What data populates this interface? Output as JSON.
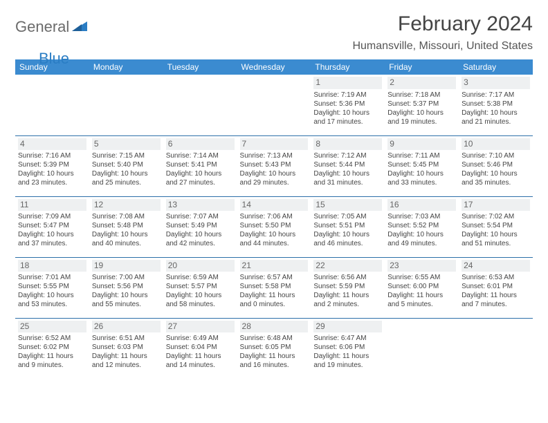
{
  "logo": {
    "text_general": "General",
    "text_blue": "Blue"
  },
  "title": "February 2024",
  "location": "Humansville, Missouri, United States",
  "colors": {
    "header_bg": "#3b8bd0",
    "header_text": "#ffffff",
    "row_divider": "#2a6ea8",
    "daynum_bg": "#eef0f1",
    "logo_gray": "#6b6b6b",
    "logo_blue": "#2a7dc4",
    "page_bg": "#ffffff"
  },
  "weekdays": [
    "Sunday",
    "Monday",
    "Tuesday",
    "Wednesday",
    "Thursday",
    "Friday",
    "Saturday"
  ],
  "weeks": [
    [
      {
        "day": "",
        "sunrise": "",
        "sunset": "",
        "daylight": ""
      },
      {
        "day": "",
        "sunrise": "",
        "sunset": "",
        "daylight": ""
      },
      {
        "day": "",
        "sunrise": "",
        "sunset": "",
        "daylight": ""
      },
      {
        "day": "",
        "sunrise": "",
        "sunset": "",
        "daylight": ""
      },
      {
        "day": "1",
        "sunrise": "Sunrise: 7:19 AM",
        "sunset": "Sunset: 5:36 PM",
        "daylight": "Daylight: 10 hours and 17 minutes."
      },
      {
        "day": "2",
        "sunrise": "Sunrise: 7:18 AM",
        "sunset": "Sunset: 5:37 PM",
        "daylight": "Daylight: 10 hours and 19 minutes."
      },
      {
        "day": "3",
        "sunrise": "Sunrise: 7:17 AM",
        "sunset": "Sunset: 5:38 PM",
        "daylight": "Daylight: 10 hours and 21 minutes."
      }
    ],
    [
      {
        "day": "4",
        "sunrise": "Sunrise: 7:16 AM",
        "sunset": "Sunset: 5:39 PM",
        "daylight": "Daylight: 10 hours and 23 minutes."
      },
      {
        "day": "5",
        "sunrise": "Sunrise: 7:15 AM",
        "sunset": "Sunset: 5:40 PM",
        "daylight": "Daylight: 10 hours and 25 minutes."
      },
      {
        "day": "6",
        "sunrise": "Sunrise: 7:14 AM",
        "sunset": "Sunset: 5:41 PM",
        "daylight": "Daylight: 10 hours and 27 minutes."
      },
      {
        "day": "7",
        "sunrise": "Sunrise: 7:13 AM",
        "sunset": "Sunset: 5:43 PM",
        "daylight": "Daylight: 10 hours and 29 minutes."
      },
      {
        "day": "8",
        "sunrise": "Sunrise: 7:12 AM",
        "sunset": "Sunset: 5:44 PM",
        "daylight": "Daylight: 10 hours and 31 minutes."
      },
      {
        "day": "9",
        "sunrise": "Sunrise: 7:11 AM",
        "sunset": "Sunset: 5:45 PM",
        "daylight": "Daylight: 10 hours and 33 minutes."
      },
      {
        "day": "10",
        "sunrise": "Sunrise: 7:10 AM",
        "sunset": "Sunset: 5:46 PM",
        "daylight": "Daylight: 10 hours and 35 minutes."
      }
    ],
    [
      {
        "day": "11",
        "sunrise": "Sunrise: 7:09 AM",
        "sunset": "Sunset: 5:47 PM",
        "daylight": "Daylight: 10 hours and 37 minutes."
      },
      {
        "day": "12",
        "sunrise": "Sunrise: 7:08 AM",
        "sunset": "Sunset: 5:48 PM",
        "daylight": "Daylight: 10 hours and 40 minutes."
      },
      {
        "day": "13",
        "sunrise": "Sunrise: 7:07 AM",
        "sunset": "Sunset: 5:49 PM",
        "daylight": "Daylight: 10 hours and 42 minutes."
      },
      {
        "day": "14",
        "sunrise": "Sunrise: 7:06 AM",
        "sunset": "Sunset: 5:50 PM",
        "daylight": "Daylight: 10 hours and 44 minutes."
      },
      {
        "day": "15",
        "sunrise": "Sunrise: 7:05 AM",
        "sunset": "Sunset: 5:51 PM",
        "daylight": "Daylight: 10 hours and 46 minutes."
      },
      {
        "day": "16",
        "sunrise": "Sunrise: 7:03 AM",
        "sunset": "Sunset: 5:52 PM",
        "daylight": "Daylight: 10 hours and 49 minutes."
      },
      {
        "day": "17",
        "sunrise": "Sunrise: 7:02 AM",
        "sunset": "Sunset: 5:54 PM",
        "daylight": "Daylight: 10 hours and 51 minutes."
      }
    ],
    [
      {
        "day": "18",
        "sunrise": "Sunrise: 7:01 AM",
        "sunset": "Sunset: 5:55 PM",
        "daylight": "Daylight: 10 hours and 53 minutes."
      },
      {
        "day": "19",
        "sunrise": "Sunrise: 7:00 AM",
        "sunset": "Sunset: 5:56 PM",
        "daylight": "Daylight: 10 hours and 55 minutes."
      },
      {
        "day": "20",
        "sunrise": "Sunrise: 6:59 AM",
        "sunset": "Sunset: 5:57 PM",
        "daylight": "Daylight: 10 hours and 58 minutes."
      },
      {
        "day": "21",
        "sunrise": "Sunrise: 6:57 AM",
        "sunset": "Sunset: 5:58 PM",
        "daylight": "Daylight: 11 hours and 0 minutes."
      },
      {
        "day": "22",
        "sunrise": "Sunrise: 6:56 AM",
        "sunset": "Sunset: 5:59 PM",
        "daylight": "Daylight: 11 hours and 2 minutes."
      },
      {
        "day": "23",
        "sunrise": "Sunrise: 6:55 AM",
        "sunset": "Sunset: 6:00 PM",
        "daylight": "Daylight: 11 hours and 5 minutes."
      },
      {
        "day": "24",
        "sunrise": "Sunrise: 6:53 AM",
        "sunset": "Sunset: 6:01 PM",
        "daylight": "Daylight: 11 hours and 7 minutes."
      }
    ],
    [
      {
        "day": "25",
        "sunrise": "Sunrise: 6:52 AM",
        "sunset": "Sunset: 6:02 PM",
        "daylight": "Daylight: 11 hours and 9 minutes."
      },
      {
        "day": "26",
        "sunrise": "Sunrise: 6:51 AM",
        "sunset": "Sunset: 6:03 PM",
        "daylight": "Daylight: 11 hours and 12 minutes."
      },
      {
        "day": "27",
        "sunrise": "Sunrise: 6:49 AM",
        "sunset": "Sunset: 6:04 PM",
        "daylight": "Daylight: 11 hours and 14 minutes."
      },
      {
        "day": "28",
        "sunrise": "Sunrise: 6:48 AM",
        "sunset": "Sunset: 6:05 PM",
        "daylight": "Daylight: 11 hours and 16 minutes."
      },
      {
        "day": "29",
        "sunrise": "Sunrise: 6:47 AM",
        "sunset": "Sunset: 6:06 PM",
        "daylight": "Daylight: 11 hours and 19 minutes."
      },
      {
        "day": "",
        "sunrise": "",
        "sunset": "",
        "daylight": ""
      },
      {
        "day": "",
        "sunrise": "",
        "sunset": "",
        "daylight": ""
      }
    ]
  ]
}
